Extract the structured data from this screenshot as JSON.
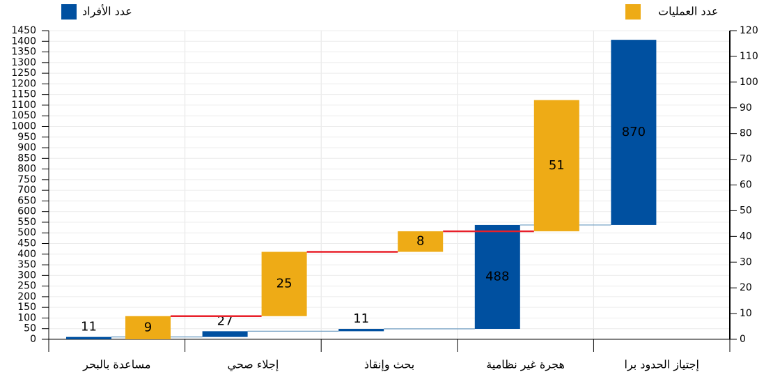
{
  "chart_data": {
    "type": "waterfall",
    "categories": [
      "مساعدة بالبحر",
      "إجلاء صحي",
      "بحث وإنقاذ",
      "هجرة غير نظامية",
      "إجتياز الحدود برا"
    ],
    "series": [
      {
        "name": "عدد الأفراد",
        "color": "#0050a0",
        "axis": "y",
        "values": [
          11,
          27,
          11,
          488,
          870
        ]
      },
      {
        "name": "عدد العمليات",
        "color": "#eeab16",
        "axis": "y2",
        "values": [
          9,
          25,
          8,
          51,
          null
        ]
      }
    ],
    "ylim": [
      0,
      1450
    ],
    "yticks": [
      0,
      50,
      100,
      150,
      200,
      250,
      300,
      350,
      400,
      450,
      500,
      550,
      600,
      650,
      700,
      750,
      800,
      850,
      900,
      950,
      1000,
      1050,
      1100,
      1150,
      1200,
      1250,
      1300,
      1350,
      1400,
      1450
    ],
    "y2lim": [
      0,
      120
    ],
    "y2ticks": [
      0,
      10,
      20,
      30,
      40,
      50,
      60,
      70,
      80,
      90,
      100,
      110,
      120
    ],
    "grid": true
  }
}
